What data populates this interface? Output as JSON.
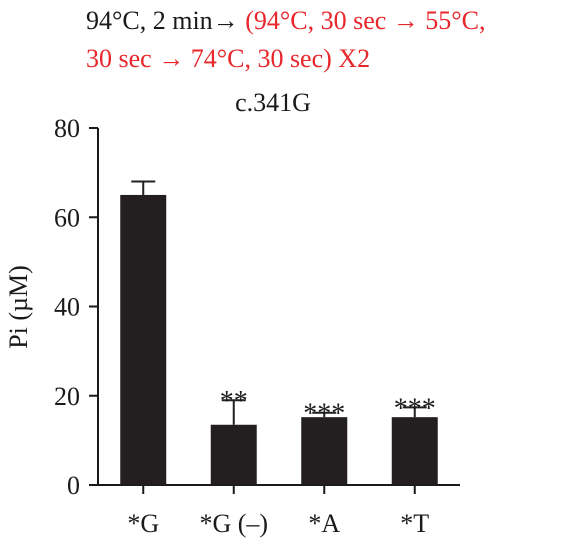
{
  "header": {
    "line1_black": "94°C, 2 min→ ",
    "line1_red": "(94°C, 30 sec → 55°C,",
    "line2_red": "30 sec → 74°C, 30 sec) X2",
    "red_color": "#e8262b"
  },
  "chart_data": {
    "type": "bar",
    "title": "c.341G",
    "ylabel": "Pi (µM)",
    "xlabel": "",
    "ylim": [
      0,
      80
    ],
    "yticks": [
      0,
      20,
      40,
      60,
      80
    ],
    "categories": [
      "*G",
      "*G (–)",
      "*A",
      "*T"
    ],
    "values": [
      65,
      13.5,
      15.2,
      15.2
    ],
    "error": [
      3,
      5.5,
      1,
      2.2
    ],
    "significance": [
      "",
      "**",
      "***",
      "***"
    ],
    "bar_color": "#231f20",
    "grid": false
  }
}
